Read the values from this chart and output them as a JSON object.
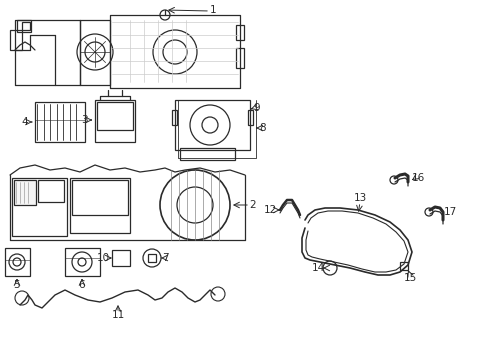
{
  "background_color": "#ffffff",
  "line_color": "#2a2a2a",
  "gray_color": "#888888",
  "light_gray": "#cccccc",
  "fig_width": 4.89,
  "fig_height": 3.6,
  "dpi": 100,
  "components": {
    "label_fontsize": 7.5,
    "leader_lw": 0.7,
    "part_lw": 0.9
  }
}
